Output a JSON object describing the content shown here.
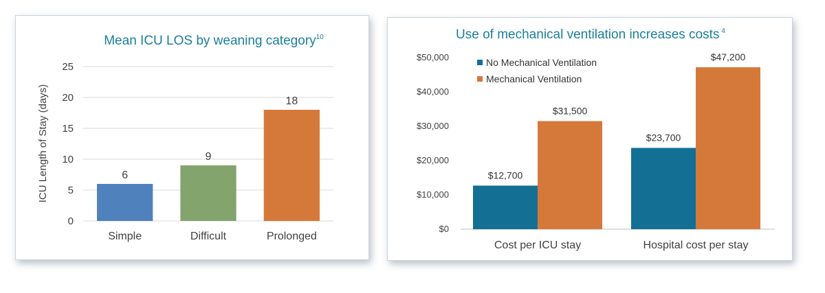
{
  "chart_data": [
    {
      "type": "bar",
      "title": "Mean ICU LOS by weaning category",
      "title_superscript": "10",
      "ylabel": "ICU Length of Stay (days)",
      "xlabel": "",
      "categories": [
        "Simple",
        "Difficult",
        "Prolonged"
      ],
      "values": [
        6,
        9,
        18
      ],
      "value_labels": [
        "6",
        "9",
        "18"
      ],
      "colors": [
        "#4f81bd",
        "#83a46d",
        "#d5793b"
      ],
      "ylim": [
        0,
        25
      ],
      "yticks": [
        0,
        5,
        10,
        15,
        20,
        25
      ],
      "ytick_labels": [
        "0",
        "5",
        "10",
        "15",
        "20",
        "25"
      ],
      "grid": true
    },
    {
      "type": "bar",
      "title": "Use of mechanical ventilation increases costs",
      "title_superscript": "4",
      "xlabel": "",
      "ylabel": "",
      "categories": [
        "Cost per ICU stay",
        "Hospital cost per stay"
      ],
      "series": [
        {
          "name": "No Mechanical Ventilation",
          "color": "#146f94",
          "values": [
            12700,
            23700
          ],
          "value_labels": [
            "$12,700",
            "$23,700"
          ]
        },
        {
          "name": "Mechanical Ventilation",
          "color": "#d5793b",
          "values": [
            31500,
            47200
          ],
          "value_labels": [
            "$31,500",
            "$47,200"
          ]
        }
      ],
      "ylim": [
        0,
        50000
      ],
      "yticks": [
        0,
        10000,
        20000,
        30000,
        40000,
        50000
      ],
      "ytick_labels": [
        "$0",
        "$10,000",
        "$20,000",
        "$30,000",
        "$40,000",
        "$50,000"
      ],
      "legend_position": "top-left",
      "grid": false
    }
  ]
}
